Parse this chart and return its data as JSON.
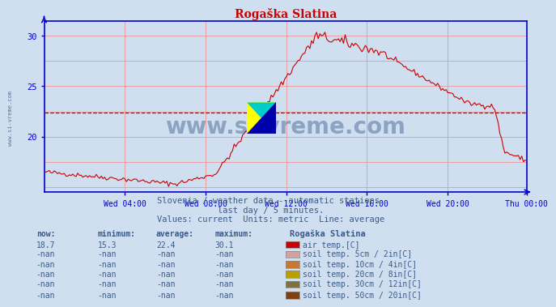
{
  "title": "Rogaška Slatina",
  "bg_color": "#d0dff0",
  "plot_bg_color": "#d0dff0",
  "line_color": "#cc0000",
  "avg_line_color": "#cc0000",
  "avg_line_value": 22.4,
  "grid_color": "#e8a0a0",
  "axis_color": "#0000cc",
  "title_color": "#cc0000",
  "ylabel_min": 14.5,
  "ylabel_max": 31.5,
  "yticks": [
    20,
    25,
    30
  ],
  "xtick_labels": [
    "Wed 04:00",
    "Wed 08:00",
    "Wed 12:00",
    "Wed 16:00",
    "Wed 20:00",
    "Thu 00:00"
  ],
  "xtick_positions": [
    48,
    96,
    144,
    192,
    240,
    287
  ],
  "watermark": "www.si-vreme.com",
  "watermark_color": "#3a5a8a",
  "subtitle1": "Slovenia / weather data - automatic stations.",
  "subtitle2": "last day / 5 minutes.",
  "subtitle3": "Values: current  Units: metric  Line: average",
  "subtitle_color": "#3a5a8a",
  "legend_title": "Rogaška Slatina",
  "legend_items": [
    {
      "label": "air temp.[C]",
      "color": "#cc0000"
    },
    {
      "label": "soil temp. 5cm / 2in[C]",
      "color": "#d4a0a0"
    },
    {
      "label": "soil temp. 10cm / 4in[C]",
      "color": "#c87832"
    },
    {
      "label": "soil temp. 20cm / 8in[C]",
      "color": "#b8a000"
    },
    {
      "label": "soil temp. 30cm / 12in[C]",
      "color": "#807040"
    },
    {
      "label": "soil temp. 50cm / 20in[C]",
      "color": "#804010"
    }
  ],
  "table_headers": [
    "now:",
    "minimum:",
    "average:",
    "maximum:"
  ],
  "table_values": [
    [
      "18.7",
      "15.3",
      "22.4",
      "30.1"
    ],
    [
      "-nan",
      "-nan",
      "-nan",
      "-nan"
    ],
    [
      "-nan",
      "-nan",
      "-nan",
      "-nan"
    ],
    [
      "-nan",
      "-nan",
      "-nan",
      "-nan"
    ],
    [
      "-nan",
      "-nan",
      "-nan",
      "-nan"
    ],
    [
      "-nan",
      "-nan",
      "-nan",
      "-nan"
    ]
  ]
}
